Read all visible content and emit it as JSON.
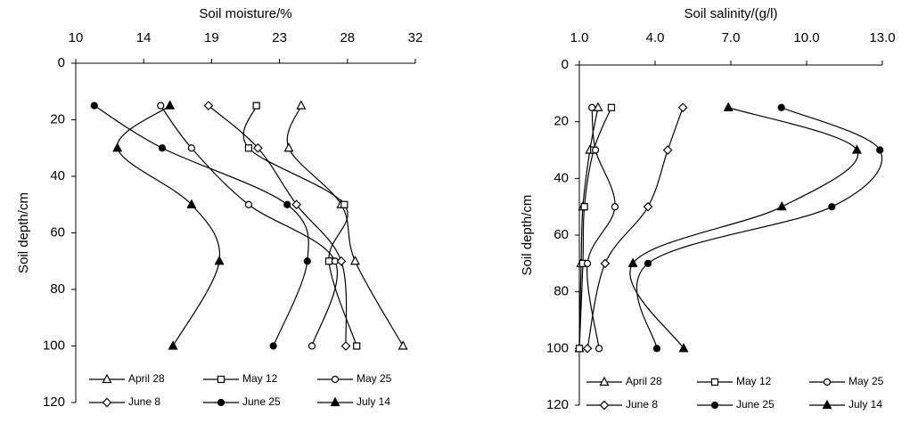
{
  "chart_data": [
    {
      "type": "line",
      "xlabel": "Soil moisture/%",
      "ylabel": "Soil depth/cm",
      "xlim": [
        10,
        32
      ],
      "xticks": [
        10,
        {
          "value": 14.4,
          "label": "14"
        },
        {
          "value": 18.8,
          "label": "19"
        },
        {
          "value": 23.2,
          "label": "23"
        },
        {
          "value": 27.6,
          "label": "28"
        },
        32
      ],
      "ylim": [
        0,
        120
      ],
      "yticks": [
        0,
        20,
        40,
        60,
        80,
        100,
        120
      ],
      "y_inverted": true,
      "y": [
        15,
        30,
        50,
        70,
        100
      ],
      "series": [
        {
          "name": "April 28",
          "color": "#000000",
          "marker": "triangle",
          "fill": "#ffffff",
          "values": [
            24.6,
            23.8,
            27.2,
            28.1,
            31.2
          ]
        },
        {
          "name": "May 12",
          "color": "#000000",
          "marker": "square",
          "fill": "#ffffff",
          "values": [
            21.7,
            21.2,
            27.4,
            26.4,
            28.2
          ]
        },
        {
          "name": "May 25",
          "color": "#000000",
          "marker": "circle",
          "fill": "#ffffff",
          "values": [
            15.5,
            17.5,
            21.2,
            26.8,
            25.3
          ]
        },
        {
          "name": "June 8",
          "color": "#000000",
          "marker": "diamond",
          "fill": "#ffffff",
          "values": [
            18.6,
            21.8,
            24.3,
            27.2,
            27.5
          ]
        },
        {
          "name": "June 25",
          "color": "#000000",
          "marker": "circle",
          "fill": "#000000",
          "values": [
            11.2,
            15.6,
            23.7,
            25.0,
            22.8
          ]
        },
        {
          "name": "July 14",
          "color": "#000000",
          "marker": "triangle",
          "fill": "#000000",
          "values": [
            16.1,
            12.7,
            17.5,
            19.3,
            16.3
          ]
        }
      ]
    },
    {
      "type": "line",
      "xlabel": "Soil salinity/(g/l)",
      "ylabel": "Soil depth/cm",
      "xlim": [
        1,
        13
      ],
      "xticks": [
        {
          "value": 1,
          "label": "1.0"
        },
        {
          "value": 4,
          "label": "4.0"
        },
        {
          "value": 7,
          "label": "7.0"
        },
        {
          "value": 10,
          "label": "10.0"
        },
        {
          "value": 13,
          "label": "13.0"
        }
      ],
      "ylim": [
        0,
        120
      ],
      "yticks": [
        0,
        20,
        40,
        60,
        80,
        100,
        120
      ],
      "y_inverted": true,
      "y": [
        15,
        30,
        50,
        70,
        100
      ],
      "series": [
        {
          "name": "April 28",
          "color": "#000000",
          "marker": "triangle",
          "fill": "#ffffff",
          "values": [
            1.74,
            1.42,
            1.14,
            1.07,
            1.0
          ]
        },
        {
          "name": "May 12",
          "color": "#000000",
          "marker": "square",
          "fill": "#ffffff",
          "values": [
            2.27,
            1.57,
            1.2,
            1.14,
            1.0
          ]
        },
        {
          "name": "May 25",
          "color": "#000000",
          "marker": "circle",
          "fill": "#ffffff",
          "values": [
            1.5,
            1.64,
            2.41,
            1.32,
            1.78
          ]
        },
        {
          "name": "June 8",
          "color": "#000000",
          "marker": "diamond",
          "fill": "#ffffff",
          "values": [
            5.1,
            4.5,
            3.72,
            2.02,
            1.32
          ]
        },
        {
          "name": "June 25",
          "color": "#000000",
          "marker": "circle",
          "fill": "#000000",
          "values": [
            9.0,
            12.9,
            11.0,
            3.72,
            4.07
          ]
        },
        {
          "name": "July 14",
          "color": "#000000",
          "marker": "triangle",
          "fill": "#000000",
          "values": [
            6.9,
            11.99,
            9.02,
            3.12,
            5.13
          ]
        }
      ]
    }
  ]
}
